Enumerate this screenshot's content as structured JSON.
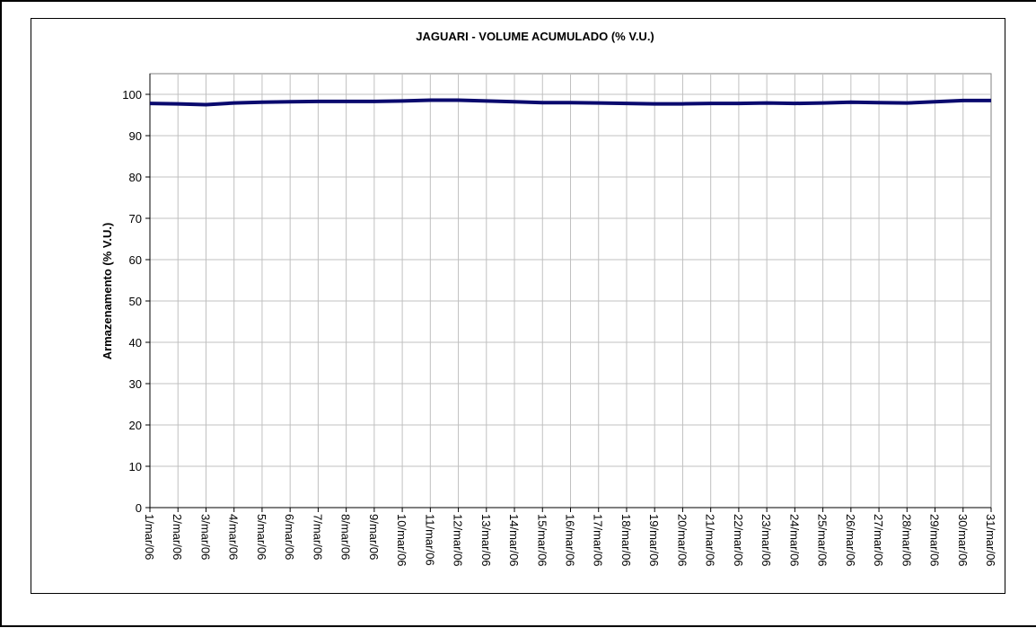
{
  "chart_data": {
    "type": "line",
    "title": "JAGUARI - VOLUME ACUMULADO (% V.U.)",
    "y_label": "Armazenamento (% V.U.)",
    "categories": [
      "1/mar/06",
      "2/mar/06",
      "3/mar/06",
      "4/mar/06",
      "5/mar/06",
      "6/mar/06",
      "7/mar/06",
      "8/mar/06",
      "9/mar/06",
      "10/mar/06",
      "11/mar/06",
      "12/mar/06",
      "13/mar/06",
      "14/mar/06",
      "15/mar/06",
      "16/mar/06",
      "17/mar/06",
      "18/mar/06",
      "19/mar/06",
      "20/mar/06",
      "21/mar/06",
      "22/mar/06",
      "23/mar/06",
      "24/mar/06",
      "25/mar/06",
      "26/mar/06",
      "27/mar/06",
      "28/mar/06",
      "29/mar/06",
      "30/mar/06",
      "31/mar/06"
    ],
    "values": [
      97.8,
      97.7,
      97.5,
      97.9,
      98.1,
      98.2,
      98.3,
      98.3,
      98.3,
      98.4,
      98.6,
      98.6,
      98.4,
      98.2,
      98.0,
      98.0,
      97.9,
      97.8,
      97.7,
      97.7,
      97.8,
      97.8,
      97.9,
      97.8,
      97.9,
      98.1,
      98.0,
      97.9,
      98.2,
      98.5,
      98.5
    ],
    "color": "#0a0a6e",
    "ylim": [
      0,
      105
    ],
    "yticks": [
      0,
      10,
      20,
      30,
      40,
      50,
      60,
      70,
      80,
      90,
      100
    ],
    "grid": true
  }
}
